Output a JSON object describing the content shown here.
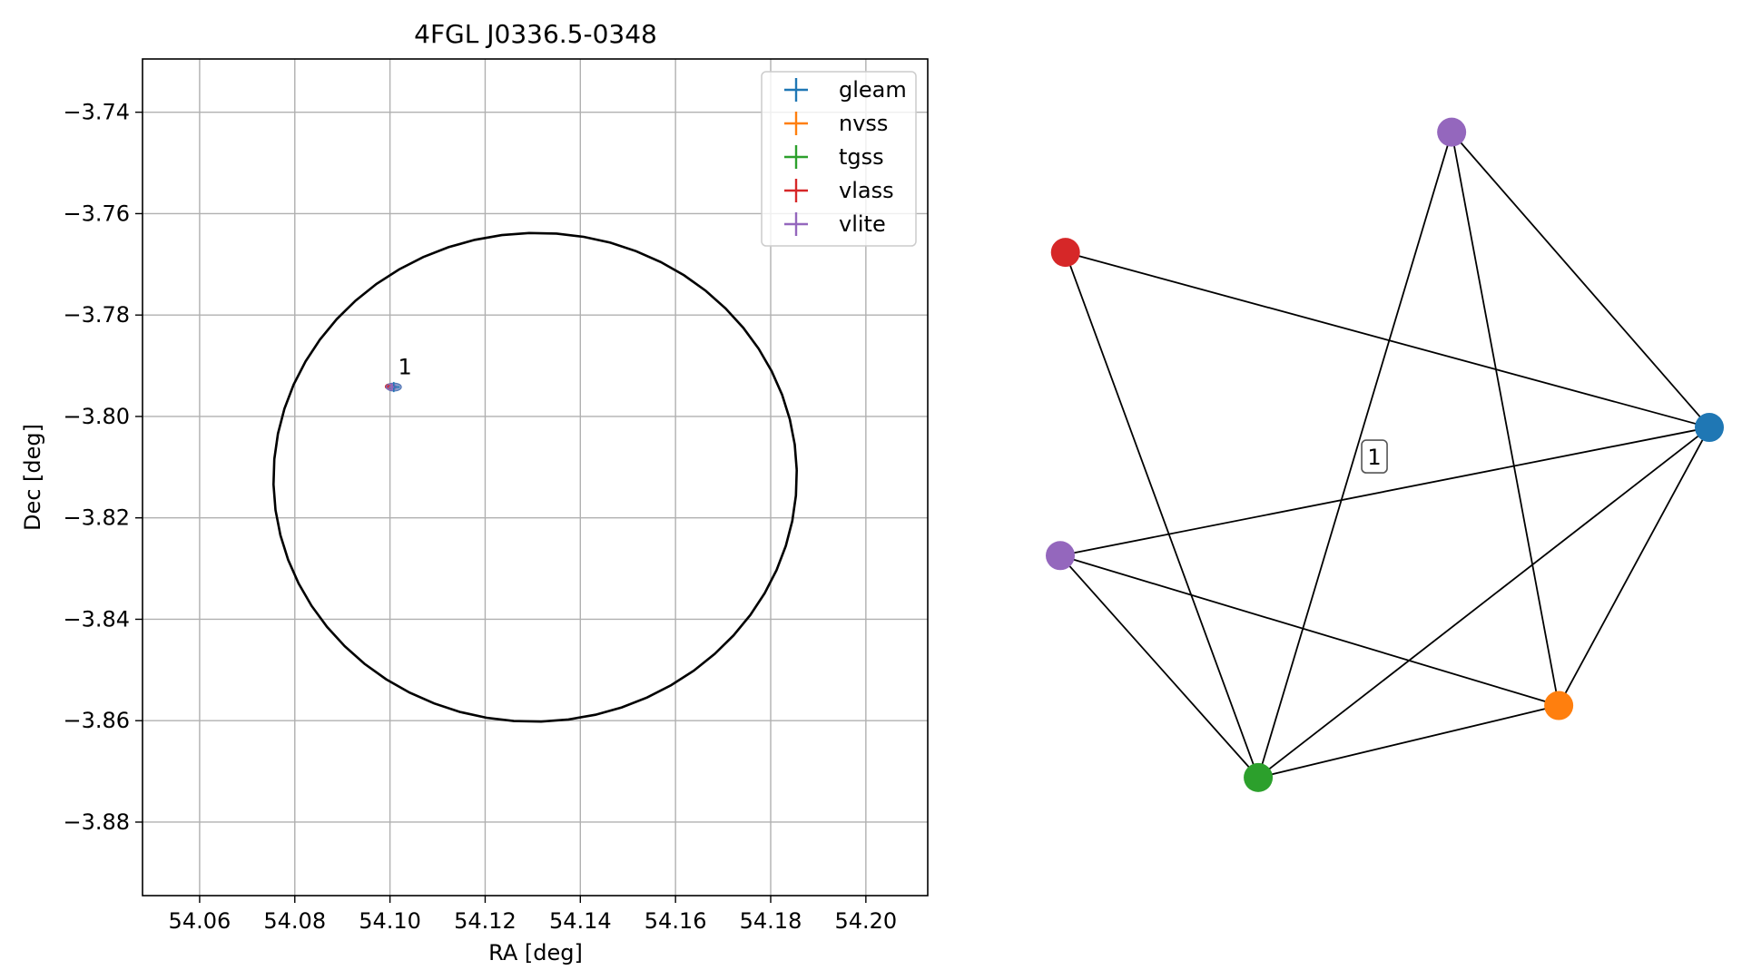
{
  "chart_data": [
    {
      "type": "scatter",
      "title": "4FGL J0336.5-0348",
      "xlabel": "RA [deg]",
      "ylabel": "Dec [deg]",
      "xlim": [
        54.048,
        54.213
      ],
      "ylim": [
        -3.8945,
        -3.7295
      ],
      "x_ticks": [
        54.06,
        54.08,
        54.1,
        54.12,
        54.14,
        54.16,
        54.18,
        54.2
      ],
      "x_tick_labels": [
        "54.06",
        "54.08",
        "54.10",
        "54.12",
        "54.14",
        "54.16",
        "54.18",
        "54.20"
      ],
      "y_ticks": [
        -3.74,
        -3.76,
        -3.78,
        -3.8,
        -3.82,
        -3.84,
        -3.86,
        -3.88
      ],
      "y_tick_labels": [
        "−3.74",
        "−3.76",
        "−3.78",
        "−3.80",
        "−3.82",
        "−3.84",
        "−3.86",
        "−3.88"
      ],
      "grid": true,
      "legend_position": "top-right",
      "series": [
        {
          "name": "gleam",
          "color": "#1f77b4",
          "ra": 54.1008,
          "dec": -3.7942,
          "ra_err": 0.0012,
          "dec_err": 0.001
        },
        {
          "name": "nvss",
          "color": "#ff7f0e",
          "ra": 54.1002,
          "dec": -3.7941,
          "ra_err": 0.0004,
          "dec_err": 0.0003
        },
        {
          "name": "tgss",
          "color": "#2ca02c",
          "ra": 54.1001,
          "dec": -3.7942,
          "ra_err": 0.0004,
          "dec_err": 0.0003
        },
        {
          "name": "vlass",
          "color": "#d62728",
          "ra": 54.0997,
          "dec": -3.7941,
          "ra_err": 0.0002,
          "dec_err": 0.0002
        },
        {
          "name": "vlite",
          "color": "#9467bd",
          "ra": 54.1003,
          "dec": -3.7942,
          "ra_err": 0.0006,
          "dec_err": 0.0005
        }
      ],
      "ellipses": [
        {
          "ra": 54.0998,
          "dec": -3.7941,
          "semi_major": 0.0008,
          "semi_minor": 0.0005,
          "color": "#d62728"
        },
        {
          "ra": 54.1008,
          "dec": -3.7942,
          "semi_major": 0.0016,
          "semi_minor": 0.0008,
          "color": "#4f73b4"
        },
        {
          "ra": 54.1003,
          "dec": -3.7942,
          "semi_major": 0.001,
          "semi_minor": 0.0006,
          "color": "#9467bd"
        }
      ],
      "annotation": {
        "text": "1",
        "ra": 54.1017,
        "dec": -3.7917
      },
      "uncertainty_ellipse": {
        "ra": 54.1305,
        "dec": -3.812,
        "semi_major": 0.055,
        "semi_minor": 0.0482,
        "angle_deg": 1.5,
        "color": "#000000"
      }
    },
    {
      "type": "network",
      "nodes": [
        {
          "id": "vlite_top",
          "color": "#9467bd",
          "x": 0.603,
          "y": 0.995
        },
        {
          "id": "vlass",
          "color": "#d62728",
          "x": 0.008,
          "y": 0.813
        },
        {
          "id": "gleam",
          "color": "#1f77b4",
          "x": 1.0,
          "y": 0.548
        },
        {
          "id": "vlite",
          "color": "#9467bd",
          "x": 0.0,
          "y": 0.354
        },
        {
          "id": "nvss",
          "color": "#ff7f0e",
          "x": 0.768,
          "y": 0.127
        },
        {
          "id": "tgss",
          "color": "#2ca02c",
          "x": 0.305,
          "y": 0.018
        }
      ],
      "edges": [
        [
          "vlass",
          "gleam"
        ],
        [
          "vlass",
          "tgss"
        ],
        [
          "vlite_top",
          "gleam"
        ],
        [
          "vlite_top",
          "nvss"
        ],
        [
          "vlite_top",
          "tgss"
        ],
        [
          "vlite",
          "gleam"
        ],
        [
          "vlite",
          "nvss"
        ],
        [
          "vlite",
          "tgss"
        ],
        [
          "gleam",
          "tgss"
        ],
        [
          "gleam",
          "nvss"
        ],
        [
          "nvss",
          "tgss"
        ]
      ],
      "label": {
        "text": "1",
        "x": 0.484,
        "y": 0.504
      }
    }
  ]
}
